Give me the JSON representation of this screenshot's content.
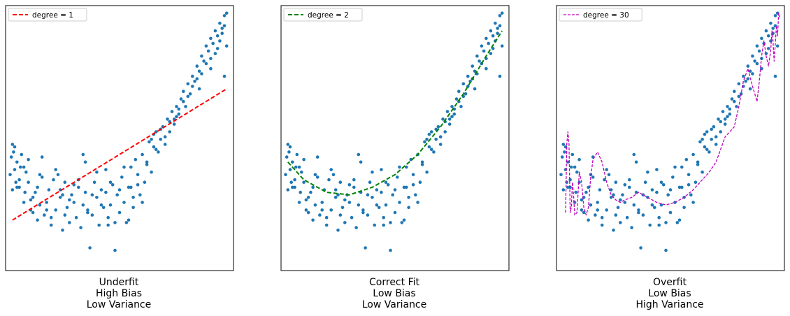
{
  "figure": {
    "background": "#ffffff",
    "point_color": "#1f77b4"
  },
  "chart_data": [
    {
      "type": "scatter",
      "title": "",
      "xlabel": "",
      "ylabel": "",
      "grid": false,
      "axis_ticks": "none",
      "xlim": [
        0,
        1
      ],
      "ylim": [
        -0.05,
        1.0
      ],
      "legend": {
        "position": "top-left",
        "entries": [
          "degree = 1"
        ]
      },
      "caption": [
        "Underfit",
        "High Bias",
        "Low Variance"
      ],
      "series": [
        {
          "kind": "scatter",
          "color": "#1f77b4"
        },
        {
          "kind": "line",
          "name": "degree = 1",
          "color": "#ff0000",
          "style": "dashed",
          "x": [
            0.03,
            0.97
          ],
          "y": [
            0.15,
            0.67
          ]
        }
      ]
    },
    {
      "type": "scatter",
      "title": "",
      "xlabel": "",
      "ylabel": "",
      "grid": false,
      "axis_ticks": "none",
      "xlim": [
        0,
        1
      ],
      "ylim": [
        -0.05,
        1.0
      ],
      "legend": {
        "position": "top-left",
        "entries": [
          "degree = 2"
        ]
      },
      "caption": [
        "Correct Fit",
        "Low Bias",
        "Low Variance"
      ],
      "series": [
        {
          "kind": "scatter",
          "color": "#1f77b4"
        },
        {
          "kind": "line",
          "name": "degree = 2",
          "color": "#008000",
          "style": "dashed",
          "x": [
            0.03,
            0.1,
            0.2,
            0.3,
            0.4,
            0.5,
            0.6,
            0.7,
            0.8,
            0.9,
            0.97
          ],
          "y": [
            0.38,
            0.31,
            0.26,
            0.25,
            0.28,
            0.33,
            0.41,
            0.52,
            0.65,
            0.8,
            0.9
          ]
        }
      ]
    },
    {
      "type": "scatter",
      "title": "",
      "xlabel": "",
      "ylabel": "",
      "grid": false,
      "axis_ticks": "none",
      "xlim": [
        0,
        1
      ],
      "ylim": [
        -0.05,
        1.0
      ],
      "legend": {
        "position": "top-left",
        "entries": [
          "degree = 30"
        ]
      },
      "caption": [
        "Overfit",
        "Low Bias",
        "High Variance"
      ],
      "series": [
        {
          "kind": "scatter",
          "color": "#1f77b4"
        },
        {
          "kind": "line",
          "name": "degree = 30",
          "color": "#bf00bf",
          "style": "dashed",
          "x": [
            0.04,
            0.045,
            0.05,
            0.055,
            0.06,
            0.065,
            0.07,
            0.075,
            0.08,
            0.09,
            0.1,
            0.11,
            0.12,
            0.13,
            0.14,
            0.15,
            0.16,
            0.18,
            0.2,
            0.22,
            0.24,
            0.26,
            0.28,
            0.3,
            0.33,
            0.36,
            0.4,
            0.44,
            0.48,
            0.52,
            0.56,
            0.6,
            0.64,
            0.67,
            0.7,
            0.72,
            0.74,
            0.76,
            0.78,
            0.8,
            0.82,
            0.84,
            0.86,
            0.88,
            0.89,
            0.9,
            0.91,
            0.92,
            0.93,
            0.94,
            0.945,
            0.95,
            0.955,
            0.96,
            0.965,
            0.97,
            0.975,
            0.98
          ],
          "y": [
            0.18,
            0.45,
            0.5,
            0.45,
            0.18,
            0.2,
            0.3,
            0.25,
            0.17,
            0.18,
            0.34,
            0.3,
            0.2,
            0.17,
            0.2,
            0.32,
            0.39,
            0.42,
            0.38,
            0.3,
            0.25,
            0.23,
            0.22,
            0.23,
            0.24,
            0.26,
            0.24,
            0.22,
            0.21,
            0.22,
            0.24,
            0.27,
            0.31,
            0.34,
            0.38,
            0.43,
            0.48,
            0.5,
            0.52,
            0.6,
            0.7,
            0.75,
            0.68,
            0.62,
            0.7,
            0.8,
            0.86,
            0.8,
            0.76,
            0.82,
            0.9,
            0.86,
            0.78,
            0.85,
            0.92,
            0.88,
            0.97,
            0.95
          ]
        }
      ]
    }
  ],
  "points": {
    "x": [
      0.02,
      0.025,
      0.03,
      0.035,
      0.04,
      0.045,
      0.05,
      0.06,
      0.065,
      0.07,
      0.08,
      0.085,
      0.09,
      0.1,
      0.11,
      0.12,
      0.13,
      0.14,
      0.15,
      0.16,
      0.17,
      0.18,
      0.19,
      0.2,
      0.21,
      0.22,
      0.23,
      0.24,
      0.25,
      0.26,
      0.27,
      0.28,
      0.29,
      0.3,
      0.31,
      0.32,
      0.33,
      0.34,
      0.35,
      0.36,
      0.37,
      0.38,
      0.39,
      0.4,
      0.41,
      0.42,
      0.43,
      0.44,
      0.45,
      0.46,
      0.47,
      0.48,
      0.49,
      0.5,
      0.51,
      0.52,
      0.53,
      0.54,
      0.55,
      0.56,
      0.57,
      0.58,
      0.59,
      0.6,
      0.61,
      0.62,
      0.63,
      0.64,
      0.65,
      0.66,
      0.67,
      0.68,
      0.69,
      0.7,
      0.71,
      0.72,
      0.73,
      0.74,
      0.75,
      0.76,
      0.77,
      0.78,
      0.79,
      0.8,
      0.81,
      0.82,
      0.83,
      0.84,
      0.85,
      0.86,
      0.87,
      0.88,
      0.89,
      0.9,
      0.91,
      0.92,
      0.93,
      0.94,
      0.95,
      0.96,
      0.97,
      0.04,
      0.06,
      0.1,
      0.14,
      0.18,
      0.22,
      0.26,
      0.3,
      0.34,
      0.38,
      0.42,
      0.46,
      0.5,
      0.54,
      0.58,
      0.62,
      0.66,
      0.7,
      0.74,
      0.78,
      0.82,
      0.86,
      0.9,
      0.94,
      0.96,
      0.03,
      0.08,
      0.12,
      0.16,
      0.2,
      0.24,
      0.28,
      0.32,
      0.36,
      0.4,
      0.44,
      0.48,
      0.52,
      0.56,
      0.6,
      0.64,
      0.68,
      0.72,
      0.76,
      0.8,
      0.84,
      0.88,
      0.92,
      0.95,
      0.97,
      0.05,
      0.11,
      0.15,
      0.25,
      0.35,
      0.45,
      0.55,
      0.65,
      0.75,
      0.85,
      0.9,
      0.93,
      0.96
    ],
    "y": [
      0.33,
      0.4,
      0.27,
      0.42,
      0.35,
      0.3,
      0.38,
      0.28,
      0.36,
      0.41,
      0.22,
      0.26,
      0.34,
      0.3,
      0.23,
      0.18,
      0.26,
      0.15,
      0.21,
      0.32,
      0.17,
      0.22,
      0.27,
      0.13,
      0.31,
      0.19,
      0.33,
      0.24,
      0.11,
      0.3,
      0.2,
      0.14,
      0.25,
      0.22,
      0.16,
      0.28,
      0.12,
      0.21,
      0.26,
      0.19,
      0.04,
      0.17,
      0.3,
      0.24,
      0.13,
      0.27,
      0.2,
      0.35,
      0.16,
      0.21,
      0.29,
      0.03,
      0.25,
      0.18,
      0.32,
      0.22,
      0.14,
      0.28,
      0.36,
      0.2,
      0.39,
      0.29,
      0.25,
      0.41,
      0.3,
      0.37,
      0.46,
      0.34,
      0.44,
      0.5,
      0.42,
      0.47,
      0.52,
      0.45,
      0.55,
      0.5,
      0.58,
      0.53,
      0.6,
      0.57,
      0.63,
      0.66,
      0.6,
      0.69,
      0.65,
      0.72,
      0.7,
      0.76,
      0.74,
      0.8,
      0.78,
      0.84,
      0.82,
      0.87,
      0.85,
      0.9,
      0.88,
      0.93,
      0.91,
      0.96,
      0.97,
      0.44,
      0.31,
      0.39,
      0.28,
      0.19,
      0.35,
      0.17,
      0.29,
      0.41,
      0.25,
      0.21,
      0.3,
      0.27,
      0.15,
      0.33,
      0.38,
      0.43,
      0.48,
      0.55,
      0.62,
      0.68,
      0.73,
      0.79,
      0.86,
      0.92,
      0.45,
      0.36,
      0.24,
      0.4,
      0.16,
      0.27,
      0.23,
      0.31,
      0.18,
      0.34,
      0.26,
      0.14,
      0.36,
      0.24,
      0.22,
      0.47,
      0.51,
      0.54,
      0.59,
      0.64,
      0.71,
      0.77,
      0.81,
      0.89,
      0.84,
      0.28,
      0.19,
      0.33,
      0.25,
      0.38,
      0.13,
      0.28,
      0.49,
      0.56,
      0.67,
      0.75,
      0.83,
      0.72
    ]
  }
}
